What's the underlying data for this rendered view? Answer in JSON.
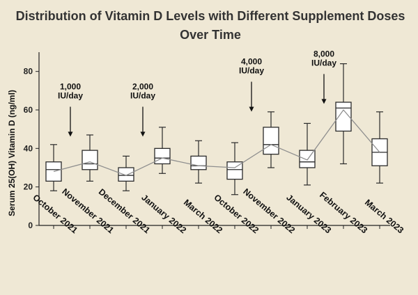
{
  "chart_data": {
    "type": "box",
    "title_lines": [
      "Distribution of Vitamin D Levels with Different Supplement Doses",
      "Over Time"
    ],
    "xlabel": "",
    "ylabel": "Serum 25(OH) Vitamin D (ng/ml)",
    "ylim": [
      0,
      90
    ],
    "yticks": [
      0,
      20,
      40,
      60,
      80
    ],
    "grid": false,
    "categories": [
      "October 2021",
      "November 2021",
      "December 2021",
      "January 2022",
      "March 2022",
      "October 2022",
      "November 2022",
      "January 2023",
      "February 2023",
      "March 2023"
    ],
    "boxes": [
      {
        "min": 18,
        "q1": 23,
        "median": 29,
        "q3": 33,
        "max": 42,
        "mean": 28
      },
      {
        "min": 23,
        "q1": 29,
        "median": 32,
        "q3": 39,
        "max": 47,
        "mean": 33
      },
      {
        "min": 18,
        "q1": 23,
        "median": 26,
        "q3": 30,
        "max": 36,
        "mean": 26
      },
      {
        "min": 27,
        "q1": 32,
        "median": 35,
        "q3": 40,
        "max": 51,
        "mean": 35
      },
      {
        "min": 22,
        "q1": 29,
        "median": 31,
        "q3": 36,
        "max": 44,
        "mean": 31
      },
      {
        "min": 16,
        "q1": 24,
        "median": 29,
        "q3": 33,
        "max": 43,
        "mean": 30
      },
      {
        "min": 30,
        "q1": 37,
        "median": 42,
        "q3": 51,
        "max": 59,
        "mean": 42
      },
      {
        "min": 21,
        "q1": 30,
        "median": 33,
        "q3": 39,
        "max": 53,
        "mean": 34
      },
      {
        "min": 32,
        "q1": 49,
        "median": 61,
        "q3": 64,
        "max": 84,
        "mean": 60
      },
      {
        "min": 22,
        "q1": 31,
        "median": 38,
        "q3": 45,
        "max": 59,
        "mean": 38
      }
    ],
    "annotations": [
      {
        "lines": [
          "1,000",
          "IU/day"
        ],
        "category": "November 2021",
        "arrow_tip_value": 49
      },
      {
        "lines": [
          "2,000",
          "IU/day"
        ],
        "category": "January 2022",
        "arrow_tip_value": 49
      },
      {
        "lines": [
          "4,000",
          "IU/day"
        ],
        "category": "November 2022",
        "arrow_tip_value": 62
      },
      {
        "lines": [
          "8,000",
          "IU/day"
        ],
        "category": "February 2023",
        "arrow_tip_value": 66
      }
    ],
    "colors": {
      "background": "#efe8d5",
      "box_fill": "#ffffff",
      "box_stroke": "#2a2a2a",
      "mean_line": "#8e8e8e"
    }
  }
}
